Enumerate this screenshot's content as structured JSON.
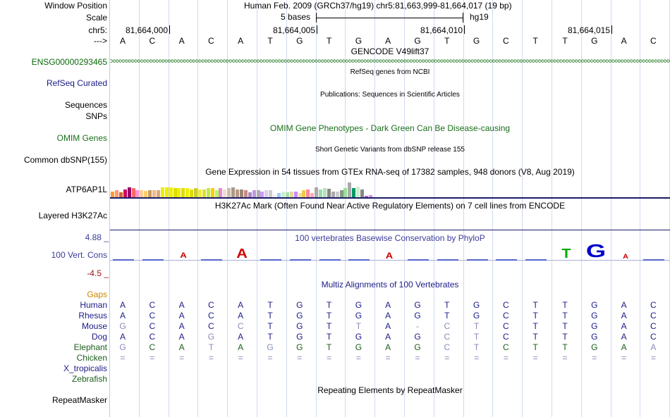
{
  "header": {
    "window_position_label": "Window Position",
    "window_position_value": "Human Feb. 2009 (GRCh37/hg19)   chr5:81,663,999-81,664,017 (19 bp)",
    "scale_label": "Scale",
    "scale_value": "5 bases",
    "assembly": "hg19",
    "chrom_label": "chr5:",
    "arrow_label": "--->",
    "ticks": [
      "81,664,000",
      "81,664,005",
      "81,664,010",
      "81,664,015"
    ]
  },
  "sequence": [
    "A",
    "C",
    "A",
    "C",
    "A",
    "T",
    "G",
    "T",
    "G",
    "A",
    "G",
    "T",
    "G",
    "C",
    "T",
    "T",
    "G",
    "A",
    "C"
  ],
  "tracks": {
    "gencode_title": "GENCODE V49lift37",
    "gencode_gene": "ENSG00000293465",
    "refseq_title": "RefSeq genes from NCBI",
    "refseq_label": "RefSeq Curated",
    "publications_title": "Publications: Sequences in Scientific Articles",
    "sequences_label": "Sequences",
    "snps_label": "SNPs",
    "omim_title": "OMIM Gene Phenotypes - Dark Green Can Be Disease-causing",
    "omim_label": "OMIM Genes",
    "dbsnp_title": "Short Genetic Variants from dbSNP release 155",
    "dbsnp_label": "Common dbSNP(155)",
    "gtex_title": "Gene Expression in 54 tissues from GTEx RNA-seq of 17382 samples, 948 donors (V8, Aug 2019)",
    "gtex_label": "ATP6AP1L",
    "h3k27ac_title": "H3K27Ac Mark (Often Found Near Active Regulatory Elements) on 7 cell lines from ENCODE",
    "h3k27ac_label": "Layered H3K27Ac",
    "cons_title": "100 vertebrates Basewise Conservation by PhyloP",
    "cons_label": "100 Vert. Cons",
    "cons_max": "4.88 _",
    "cons_min": "-4.5 _",
    "multiz_title": "Multiz Alignments of 100 Vertebrates",
    "gaps_label": "Gaps",
    "rmsk_title": "Repeating Elements by RepeatMasker",
    "rmsk_label": "RepeatMasker"
  },
  "gtex_levels": [
    0.6,
    0.7,
    0.5,
    0.8,
    1.0,
    0.9,
    0.7,
    0.7,
    0.65,
    0.7,
    0.7,
    0.7,
    1.0,
    1.0,
    1.0,
    0.9,
    0.9,
    0.9,
    0.9,
    0.8,
    0.9,
    0.8,
    0.8,
    0.9,
    0.9,
    0.7,
    0.9,
    0.8,
    0.95,
    1.0,
    0.8,
    0.8,
    0.7,
    0.5,
    0.7,
    0.7,
    0.6,
    0.7,
    0.7,
    0.3,
    0.4,
    0.6,
    0.5,
    0.55,
    0.6,
    0.4,
    0.7,
    0.8,
    0.4,
    1.0,
    0.8,
    0.9,
    0.85,
    0.6,
    0.55,
    0.7,
    0.9,
    1.5,
    0.9,
    1.1,
    0.8,
    0.1,
    0.2
  ],
  "gtex_colors": [
    "#ff9933",
    "#ff9966",
    "#cc6633",
    "#cc0066",
    "#990066",
    "#ff6666",
    "#ff99cc",
    "#ffcc99",
    "#ffcc66",
    "#cc9966",
    "#eebb88",
    "#ddaa77",
    "#eeee00",
    "#eeee00",
    "#eeee00",
    "#dddd00",
    "#eeee00",
    "#dddd00",
    "#eeee00",
    "#dddd00",
    "#cccc33",
    "#eeee33",
    "#dddd33",
    "#bbee44",
    "#ffcc00",
    "#aaff66",
    "#ee88cc",
    "#eeddcc",
    "#ccbbaa",
    "#aa9988",
    "#bb9988",
    "#998877",
    "#cc8888",
    "#aa88bb",
    "#bb99dd",
    "#aaaaaa",
    "#cc99ff",
    "#ddccee",
    "#cccccc",
    "#eeeeee",
    "#99ccff",
    "#cceecc",
    "#aaddaa",
    "#dddd99",
    "#cc88ff",
    "#eeddaa",
    "#eecc44",
    "#ff8899",
    "#ffaabb",
    "#aaaaaa",
    "#99ddaa",
    "#bbddbb",
    "#888888",
    "#aaaaaa",
    "#cccccc",
    "#889988",
    "#99dd99",
    "#aaaaaa",
    "#009966",
    "#cceecc",
    "#888888",
    "#aa66cc",
    "#dd88ee"
  ],
  "cons_letters": [
    {
      "b": "",
      "h": 0
    },
    {
      "b": "",
      "h": 0
    },
    {
      "b": "A",
      "h": 0.25,
      "c": "#cc0000"
    },
    {
      "b": "",
      "h": 0
    },
    {
      "b": "A",
      "h": 0.6,
      "c": "#cc0000"
    },
    {
      "b": "",
      "h": 0
    },
    {
      "b": "",
      "h": 0
    },
    {
      "b": "",
      "h": 0
    },
    {
      "b": "",
      "h": 0
    },
    {
      "b": "A",
      "h": 0.3,
      "c": "#cc0000"
    },
    {
      "b": "",
      "h": 0
    },
    {
      "b": "",
      "h": 0
    },
    {
      "b": "",
      "h": 0
    },
    {
      "b": "",
      "h": 0
    },
    {
      "b": "",
      "h": 0
    },
    {
      "b": "T",
      "h": 0.6,
      "c": "#00aa00"
    },
    {
      "b": "G",
      "h": 1.0,
      "c": "#0000cc"
    },
    {
      "b": "A",
      "h": 0.15,
      "c": "#cc0000"
    },
    {
      "b": "",
      "h": 0
    }
  ],
  "species": [
    {
      "name": "Human",
      "color": "#1b1b88",
      "bases": "ACACATGTGAGTGCTTGAC",
      "gray": []
    },
    {
      "name": "Rhesus",
      "color": "#1b1b88",
      "bases": "ACACATGTGAGTGCTTGAC",
      "gray": []
    },
    {
      "name": "Mouse",
      "color": "#1b1b88",
      "bases": "GCACCTGTTA-CTCTTGAC",
      "gray": [
        0,
        4,
        8,
        10,
        11,
        12
      ]
    },
    {
      "name": "Dog",
      "color": "#1b1b88",
      "bases": "ACAGATGTGAGCTCTTGAC",
      "gray": [
        3,
        11,
        12
      ]
    },
    {
      "name": "Elephant",
      "color": "#1b5e1b",
      "bases": "GCATAGGTGAGCTCTTGAA",
      "gray": [
        0,
        3,
        5,
        11,
        12,
        18
      ]
    },
    {
      "name": "Chicken",
      "color": "#1b5e1b",
      "bases": "===================",
      "gray": "all"
    },
    {
      "name": "X_tropicalis",
      "color": "#1b1b88",
      "bases": "",
      "gray": []
    },
    {
      "name": "Zebrafish",
      "color": "#1b5e1b",
      "bases": "",
      "gray": []
    }
  ],
  "colors": {
    "label_blue": "#1b1b88",
    "label_green": "#1b6e1b",
    "gencode_green": "#0a6a0a",
    "gaps_orange": "#cc8800",
    "cons_blue": "#3b3b9c",
    "cons_red": "#991111",
    "gridline": "#d2daf0"
  }
}
